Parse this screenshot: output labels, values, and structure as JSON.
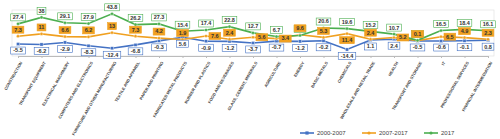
{
  "chart_data": {
    "type": "line",
    "categories": [
      "CONSTRUCTION",
      "TRANSPORT EQUIPMENT",
      "ELECTRICAL MACHINERY",
      "COMPUTERS AND ELECTRONICS",
      "FURNITURE AND OTHER MANUFACTURING",
      "TEXTILE AND APPAREL",
      "PAPER AND PRINTING",
      "FABRICATED METAL PRODUCTS",
      "RUBBER AND PLASTICS",
      "FOOD AND BEVERAGES",
      "GLASS, CEMENT, MINERALS",
      "AGRICULTURE",
      "ENERGY",
      "BASIC METALS",
      "CHEMICALS",
      "WHOLESALE AND RETAIL TRADE",
      "HEALTH",
      "TRANSPORT AND STORAGE",
      "IT",
      "PROFESSIONAL SERVICES",
      "FINANCIAL INTERMEDIATION"
    ],
    "series": [
      {
        "name": "2000-2007",
        "color": "#4472c4",
        "marker": "square",
        "values": [
          -5.5,
          -6.2,
          -2.9,
          -8.3,
          -12.4,
          -6.8,
          -0.3,
          5.6,
          -0.9,
          -1.2,
          -3.7,
          -0.7,
          -1.2,
          -0.2,
          -14.4,
          1.1,
          2.4,
          -0.5,
          -0.6,
          -0.1,
          0.8
        ]
      },
      {
        "name": "2007-2017",
        "color": "#f0a020",
        "marker": "circle",
        "values": [
          7.3,
          11,
          6.6,
          6.2,
          13,
          7.3,
          4.2,
          1.9,
          7.6,
          2.4,
          5.6,
          3.4,
          9.6,
          5.3,
          11.4,
          2.4,
          5.2,
          0.1,
          6.5,
          4.9,
          2.3
        ]
      },
      {
        "name": "2017",
        "color": "#4caf50",
        "marker": "circle",
        "values": [
          27.4,
          38,
          29.1,
          27.9,
          43.8,
          26.2,
          27.3,
          15.4,
          17.4,
          22.8,
          12.7,
          6.7,
          8.4,
          20.6,
          19.6,
          15.2,
          10.7,
          0.5,
          16.5,
          18.4,
          16.1
        ]
      }
    ],
    "ylim": [
      -25,
      50
    ],
    "tick_labels": "x",
    "data_labels": true,
    "legend": "bottom-right"
  }
}
